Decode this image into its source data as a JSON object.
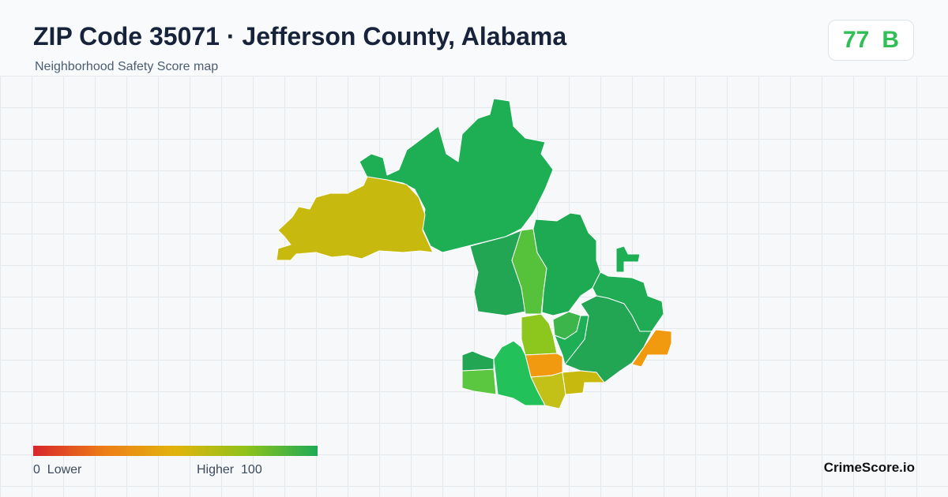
{
  "header": {
    "title": "ZIP Code 35071 · Jefferson County, Alabama",
    "subtitle": "Neighborhood Safety Score map"
  },
  "score": {
    "value": 77,
    "grade": "B"
  },
  "legend": {
    "min": 0,
    "min_label": "Lower",
    "max_label": "Higher",
    "max": 100
  },
  "brand": "CrimeScore.io"
}
